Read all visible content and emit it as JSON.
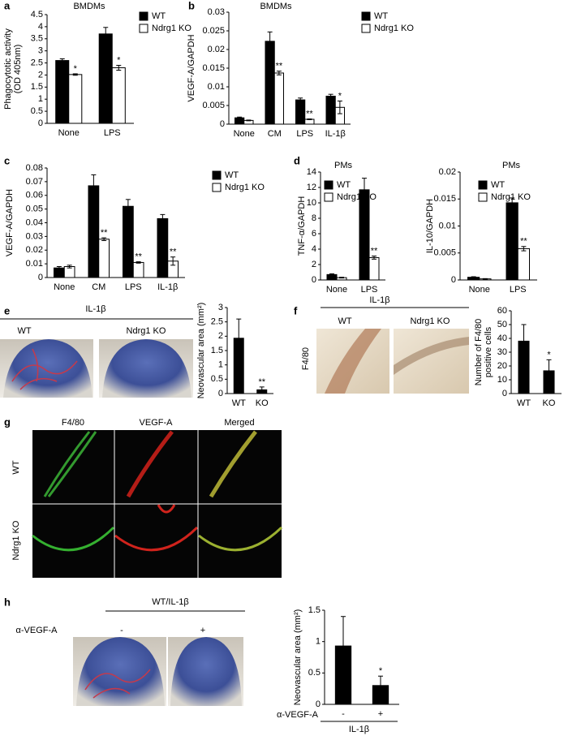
{
  "chart_data": [
    {
      "type": "bar",
      "panel": "a",
      "title": "BMDMs",
      "ylabel": [
        "Phagocytotic activity",
        "(OD 405nm)"
      ],
      "categories": [
        "None",
        "LPS"
      ],
      "series": [
        {
          "name": "WT",
          "color": "#000000",
          "values": [
            2.6,
            3.7
          ],
          "errors": [
            0.07,
            0.27
          ],
          "significance": [
            null,
            null
          ]
        },
        {
          "name": "Ndrg1 KO",
          "color": "#ffffff",
          "values": [
            2.02,
            2.3
          ],
          "errors": [
            0.03,
            0.1
          ],
          "significance": [
            "*",
            "*"
          ]
        }
      ],
      "ylim": [
        0,
        4.5
      ],
      "yticks": [
        0,
        0.5,
        1,
        1.5,
        2,
        2.5,
        3,
        3.5,
        4,
        4.5
      ]
    },
    {
      "type": "bar",
      "panel": "b",
      "title": "BMDMs",
      "ylabel": [
        "VEGF-A/GAPDH"
      ],
      "categories": [
        "None",
        "CM",
        "LPS",
        "IL-1β"
      ],
      "series": [
        {
          "name": "WT",
          "color": "#000000",
          "values": [
            0.0017,
            0.0222,
            0.0065,
            0.0075
          ],
          "errors": [
            0.0002,
            0.0025,
            0.0005,
            0.0005
          ],
          "significance": [
            null,
            null,
            null,
            null
          ]
        },
        {
          "name": "Ndrg1 KO",
          "color": "#ffffff",
          "values": [
            0.001,
            0.0137,
            0.0013,
            0.0045
          ],
          "errors": [
            0.0001,
            0.0005,
            0.0001,
            0.0017
          ],
          "significance": [
            null,
            "**",
            "**",
            "*"
          ]
        }
      ],
      "ylim": [
        0,
        0.03
      ],
      "yticks": [
        0,
        0.005,
        0.01,
        0.015,
        0.02,
        0.025,
        0.03
      ]
    },
    {
      "type": "bar",
      "panel": "c",
      "ylabel": [
        "VEGF-A/GAPDH"
      ],
      "categories": [
        "None",
        "CM",
        "LPS",
        "IL-1β"
      ],
      "series": [
        {
          "name": "WT",
          "color": "#000000",
          "values": [
            0.007,
            0.067,
            0.052,
            0.043
          ],
          "errors": [
            0.001,
            0.008,
            0.005,
            0.003
          ],
          "significance": [
            null,
            null,
            null,
            null
          ]
        },
        {
          "name": "Ndrg1 KO",
          "color": "#ffffff",
          "values": [
            0.008,
            0.028,
            0.011,
            0.012
          ],
          "errors": [
            0.001,
            0.001,
            0.0005,
            0.003
          ],
          "significance": [
            null,
            "**",
            "**",
            "**"
          ]
        }
      ],
      "ylim": [
        0,
        0.08
      ],
      "yticks": [
        0,
        0.01,
        0.02,
        0.03,
        0.04,
        0.05,
        0.06,
        0.07,
        0.08
      ]
    },
    {
      "type": "bar",
      "panel": "d",
      "title": "PMs",
      "ylabel": [
        "TNF-α/GAPDH"
      ],
      "categories": [
        "None",
        "LPS"
      ],
      "series": [
        {
          "name": "WT",
          "color": "#000000",
          "values": [
            0.7,
            11.7
          ],
          "errors": [
            0.1,
            1.5
          ],
          "significance": [
            null,
            null
          ]
        },
        {
          "name": "Ndrg1 KO",
          "color": "#ffffff",
          "values": [
            0.3,
            2.9
          ],
          "errors": [
            0.05,
            0.2
          ],
          "significance": [
            null,
            "**"
          ]
        }
      ],
      "ylim": [
        0,
        14
      ],
      "yticks": [
        0,
        2,
        4,
        6,
        8,
        10,
        12,
        14
      ]
    },
    {
      "type": "bar",
      "title": "PMs",
      "ylabel": [
        "IL-10/GAPDH"
      ],
      "categories": [
        "None",
        "LPS"
      ],
      "series": [
        {
          "name": "WT",
          "color": "#000000",
          "values": [
            0.0005,
            0.0143
          ],
          "errors": [
            0.0001,
            0.0009
          ],
          "significance": [
            null,
            null
          ]
        },
        {
          "name": "Ndrg1 KO",
          "color": "#ffffff",
          "values": [
            0.0002,
            0.0058
          ],
          "errors": [
            5e-05,
            0.0004
          ],
          "significance": [
            null,
            "**"
          ]
        }
      ],
      "ylim": [
        0,
        0.02
      ],
      "yticks": [
        0,
        0.005,
        0.01,
        0.015,
        0.02
      ]
    },
    {
      "type": "bar",
      "ylabel": [
        "Neovascular area (mm²)"
      ],
      "categories": [
        "WT",
        "KO"
      ],
      "series": [
        {
          "color": "#000000",
          "values": [
            1.93,
            0.13
          ],
          "errors": [
            0.67,
            0.1
          ],
          "significance": [
            null,
            "**"
          ]
        }
      ],
      "ylim": [
        0,
        3
      ],
      "yticks": [
        0,
        0.5,
        1,
        1.5,
        2,
        2.5,
        3
      ]
    },
    {
      "type": "bar",
      "ylabel": [
        "Number of F4/80",
        "positive cells"
      ],
      "categories": [
        "WT",
        "KO"
      ],
      "series": [
        {
          "color": "#000000",
          "values": [
            38,
            16.5
          ],
          "errors": [
            12,
            8
          ],
          "significance": [
            null,
            "*"
          ]
        }
      ],
      "ylim": [
        0,
        60
      ],
      "yticks": [
        0,
        10,
        20,
        30,
        40,
        50,
        60
      ]
    },
    {
      "type": "bar",
      "ylabel": [
        "Neovascular area (mm²)"
      ],
      "categories": [
        "-",
        "+"
      ],
      "xlabel": "α-VEGF-A",
      "group_label": "IL-1β",
      "series": [
        {
          "color": "#000000",
          "values": [
            0.93,
            0.3
          ],
          "errors": [
            0.47,
            0.15
          ],
          "significance": [
            null,
            "*"
          ]
        }
      ],
      "ylim": [
        0,
        1.5
      ],
      "yticks": [
        0,
        0.5,
        1,
        1.5
      ]
    }
  ],
  "figures": {
    "e": {
      "panel": "e",
      "title": "IL-1β",
      "labels": [
        "WT",
        "Ndrg1 KO"
      ]
    },
    "f": {
      "panel": "f",
      "title": "IL-1β",
      "labels": [
        "WT",
        "Ndrg1 KO"
      ],
      "stain": "F4/80"
    },
    "g": {
      "panel": "g",
      "columns": [
        "F4/80",
        "VEGF-A",
        "Merged"
      ],
      "rows": [
        "WT",
        "Ndrg1 KO"
      ]
    },
    "h": {
      "panel": "h",
      "title": "WT/IL-1β",
      "treatment": "α-VEGF-A",
      "conditions": [
        "-",
        "+"
      ]
    }
  }
}
